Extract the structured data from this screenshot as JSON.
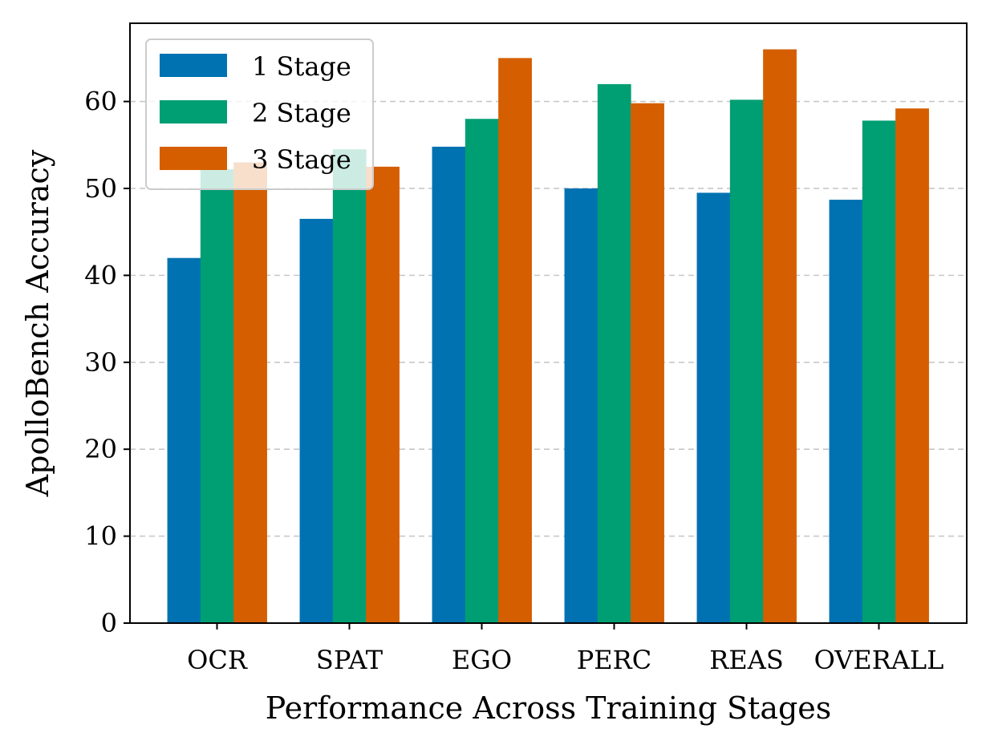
{
  "chart_data": {
    "type": "bar",
    "xlabel": "Performance Across Training Stages",
    "ylabel": "ApolloBench Accuracy",
    "categories": [
      "OCR",
      "SPAT",
      "EGO",
      "PERC",
      "REAS",
      "OVERALL"
    ],
    "series": [
      {
        "name": "1 Stage",
        "color": "#0072B2",
        "values": [
          42.0,
          46.5,
          54.8,
          50.0,
          49.5,
          48.7
        ]
      },
      {
        "name": "2 Stage",
        "color": "#009E73",
        "values": [
          52.2,
          54.5,
          58.0,
          62.0,
          60.2,
          57.8
        ]
      },
      {
        "name": "3 Stage",
        "color": "#D55E00",
        "values": [
          53.0,
          52.5,
          65.0,
          59.8,
          66.0,
          59.2
        ]
      }
    ],
    "ylim": [
      0,
      69
    ],
    "yticks": [
      0,
      10,
      20,
      30,
      40,
      50,
      60
    ],
    "grid": "y-dashed",
    "legend_position": "top-left"
  }
}
